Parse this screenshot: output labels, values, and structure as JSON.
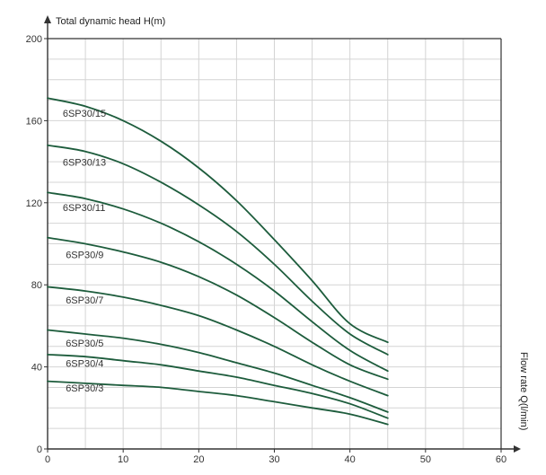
{
  "chart_data": {
    "type": "line",
    "ylabel": "Total dynamic head H(m)",
    "xlabel": "Flow rate Q(l/min)",
    "xlim": [
      0,
      60
    ],
    "ylim": [
      0,
      200
    ],
    "x_ticks": [
      0,
      10,
      20,
      30,
      40,
      50,
      60
    ],
    "y_ticks": [
      0,
      40,
      80,
      120,
      160,
      200
    ],
    "x_tick_labels": [
      "0",
      "10",
      "20",
      "30",
      "40",
      "50",
      "60"
    ],
    "y_tick_labels": [
      "0",
      "40",
      "80",
      "120",
      "160",
      "200"
    ],
    "grid": true,
    "grid_x_step": 5,
    "grid_y_step": 10,
    "line_color": "#1d5c3c",
    "axis_color": "#333333",
    "grid_color": "#d4d4d4",
    "x": [
      0,
      5,
      10,
      15,
      20,
      25,
      30,
      35,
      40,
      45
    ],
    "series": [
      {
        "name": "6SP30/15",
        "label_at": [
          2,
          162
        ],
        "values": [
          171,
          167,
          160,
          150,
          137,
          121,
          102,
          82,
          61,
          52
        ]
      },
      {
        "name": "6SP30/13",
        "label_at": [
          2,
          138
        ],
        "values": [
          148,
          145,
          139,
          130,
          119,
          106,
          90,
          72,
          56,
          46
        ]
      },
      {
        "name": "6SP30/11",
        "label_at": [
          2,
          116
        ],
        "values": [
          125,
          122,
          117,
          110,
          101,
          90,
          77,
          62,
          48,
          38
        ]
      },
      {
        "name": "6SP30/9",
        "label_at": [
          2.4,
          93
        ],
        "values": [
          103,
          100,
          96,
          91,
          84,
          75,
          64,
          52,
          41,
          34
        ]
      },
      {
        "name": "6SP30/7",
        "label_at": [
          2.4,
          71
        ],
        "values": [
          79,
          77,
          74,
          70,
          65,
          58,
          50,
          41,
          33,
          26
        ]
      },
      {
        "name": "6SP30/5",
        "label_at": [
          2.4,
          50
        ],
        "values": [
          58,
          56,
          54,
          51,
          47,
          42,
          37,
          31,
          25,
          18
        ]
      },
      {
        "name": "6SP30/4",
        "label_at": [
          2.4,
          40
        ],
        "values": [
          46,
          45,
          43,
          41,
          38,
          35,
          31,
          27,
          22,
          15
        ]
      },
      {
        "name": "6SP30/3",
        "label_at": [
          2.4,
          28
        ],
        "values": [
          33,
          32,
          31,
          30,
          28,
          26,
          23,
          20,
          17,
          12
        ]
      }
    ]
  }
}
